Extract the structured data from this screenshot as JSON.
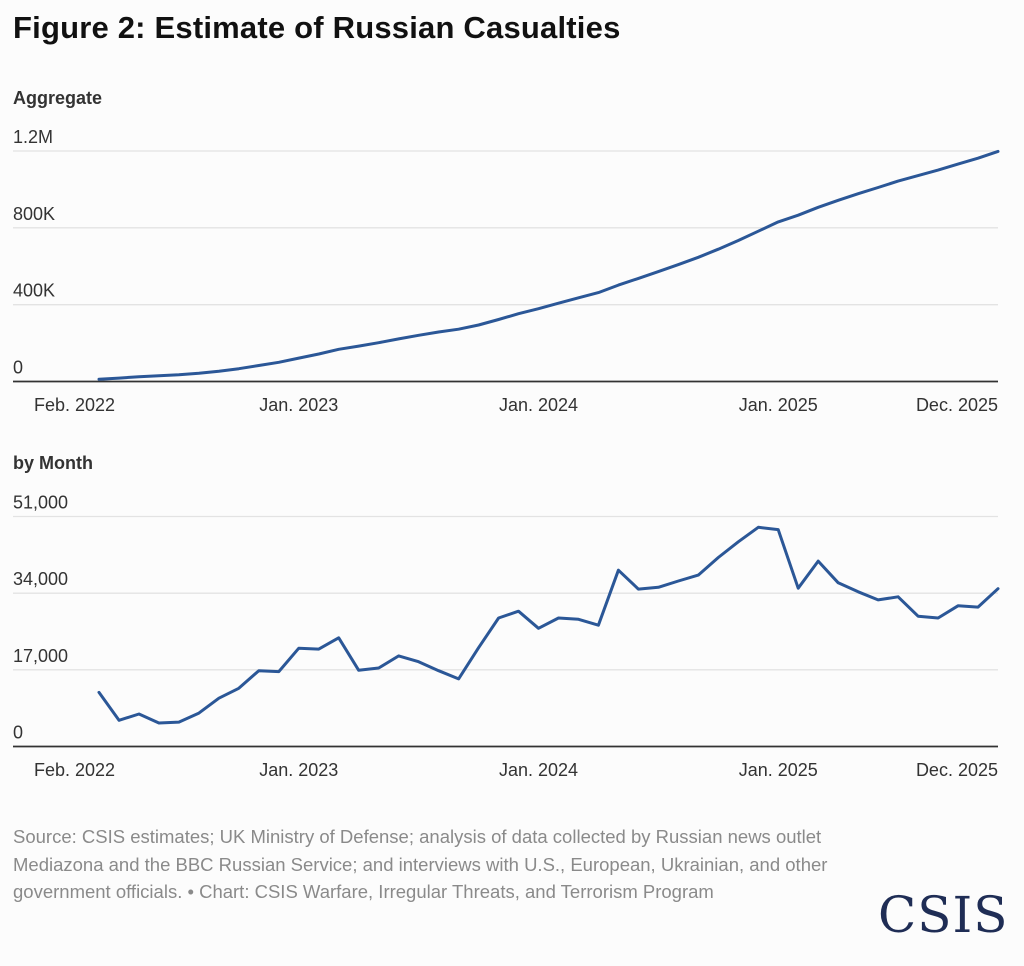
{
  "title": "Figure 2: Estimate of Russian Casualties",
  "source": "Source: CSIS estimates; UK Ministry of Defense; analysis of data collected by Russian news outlet Mediazona and the BBC Russian Service; and interviews with U.S., European, Ukrainian, and other government officials. • Chart: CSIS Warfare, Irregular Threats, and Terrorism Program",
  "logo_text": "CSIS",
  "colors": {
    "line": "#2b5797",
    "grid": "#e3e3e3",
    "axis": "#333333",
    "logo": "#1f2d55"
  },
  "chart_data": [
    {
      "type": "line",
      "title": "Aggregate",
      "xlabel": "",
      "ylabel": "",
      "ylim": [
        0,
        1200000
      ],
      "grid": true,
      "yticks": [
        {
          "value": 0,
          "label": "0"
        },
        {
          "value": 400000,
          "label": "400K"
        },
        {
          "value": 800000,
          "label": "800K"
        },
        {
          "value": 1200000,
          "label": "1.2M"
        }
      ],
      "xticks": [
        {
          "x": "2022-03",
          "label": "Feb. 2022"
        },
        {
          "x": "2023-01",
          "label": "Jan. 2023"
        },
        {
          "x": "2024-01",
          "label": "Jan. 2024"
        },
        {
          "x": "2025-01",
          "label": "Jan. 2025"
        },
        {
          "x": "2025-12",
          "label": "Dec. 2025"
        }
      ],
      "x": [
        "2022-03",
        "2022-04",
        "2022-05",
        "2022-06",
        "2022-07",
        "2022-08",
        "2022-09",
        "2022-10",
        "2022-11",
        "2022-12",
        "2023-01",
        "2023-02",
        "2023-03",
        "2023-04",
        "2023-05",
        "2023-06",
        "2023-07",
        "2023-08",
        "2023-09",
        "2023-10",
        "2023-11",
        "2023-12",
        "2024-01",
        "2024-02",
        "2024-03",
        "2024-04",
        "2024-05",
        "2024-06",
        "2024-07",
        "2024-08",
        "2024-09",
        "2024-10",
        "2024-11",
        "2024-12",
        "2025-01",
        "2025-02",
        "2025-03",
        "2025-04",
        "2025-05",
        "2025-06",
        "2025-07",
        "2025-08",
        "2025-09",
        "2025-10",
        "2025-11",
        "2025-12"
      ],
      "values": [
        12000,
        17800,
        25000,
        30200,
        35600,
        43000,
        53700,
        66600,
        83400,
        100000,
        121800,
        143400,
        167500,
        184400,
        201800,
        221900,
        240700,
        257500,
        272500,
        294400,
        322900,
        352900,
        379100,
        407600,
        435800,
        462700,
        501800,
        536700,
        572000,
        608700,
        646700,
        688600,
        734000,
        782600,
        830700,
        865800,
        906900,
        943200,
        977500,
        1010000,
        1043200,
        1072100,
        1100600,
        1131800,
        1162700,
        1197700
      ]
    },
    {
      "type": "line",
      "title": "by Month",
      "xlabel": "",
      "ylabel": "",
      "ylim": [
        0,
        51000
      ],
      "grid": true,
      "yticks": [
        {
          "value": 0,
          "label": "0"
        },
        {
          "value": 17000,
          "label": "17,000"
        },
        {
          "value": 34000,
          "label": "34,000"
        },
        {
          "value": 51000,
          "label": "51,000"
        }
      ],
      "xticks": [
        {
          "x": "2022-03",
          "label": "Feb. 2022"
        },
        {
          "x": "2023-01",
          "label": "Jan. 2023"
        },
        {
          "x": "2024-01",
          "label": "Jan. 2024"
        },
        {
          "x": "2025-01",
          "label": "Jan. 2025"
        },
        {
          "x": "2025-12",
          "label": "Dec. 2025"
        }
      ],
      "x": [
        "2022-03",
        "2022-04",
        "2022-05",
        "2022-06",
        "2022-07",
        "2022-08",
        "2022-09",
        "2022-10",
        "2022-11",
        "2022-12",
        "2023-01",
        "2023-02",
        "2023-03",
        "2023-04",
        "2023-05",
        "2023-06",
        "2023-07",
        "2023-08",
        "2023-09",
        "2023-10",
        "2023-11",
        "2023-12",
        "2024-01",
        "2024-02",
        "2024-03",
        "2024-04",
        "2024-05",
        "2024-06",
        "2024-07",
        "2024-08",
        "2024-09",
        "2024-10",
        "2024-11",
        "2024-12",
        "2025-01",
        "2025-02",
        "2025-03",
        "2025-04",
        "2025-05",
        "2025-06",
        "2025-07",
        "2025-08",
        "2025-09",
        "2025-10",
        "2025-11",
        "2025-12"
      ],
      "values": [
        12000,
        5800,
        7200,
        5200,
        5400,
        7400,
        10700,
        12900,
        16800,
        16600,
        21800,
        21600,
        24100,
        16900,
        17400,
        20100,
        18800,
        16800,
        15000,
        21900,
        28500,
        30000,
        26200,
        28500,
        28200,
        26900,
        39100,
        34900,
        35300,
        36700,
        38000,
        41900,
        45400,
        48600,
        48100,
        35100,
        41100,
        36300,
        34300,
        32500,
        33200,
        28900,
        28500,
        31200,
        30900,
        35000
      ]
    }
  ]
}
